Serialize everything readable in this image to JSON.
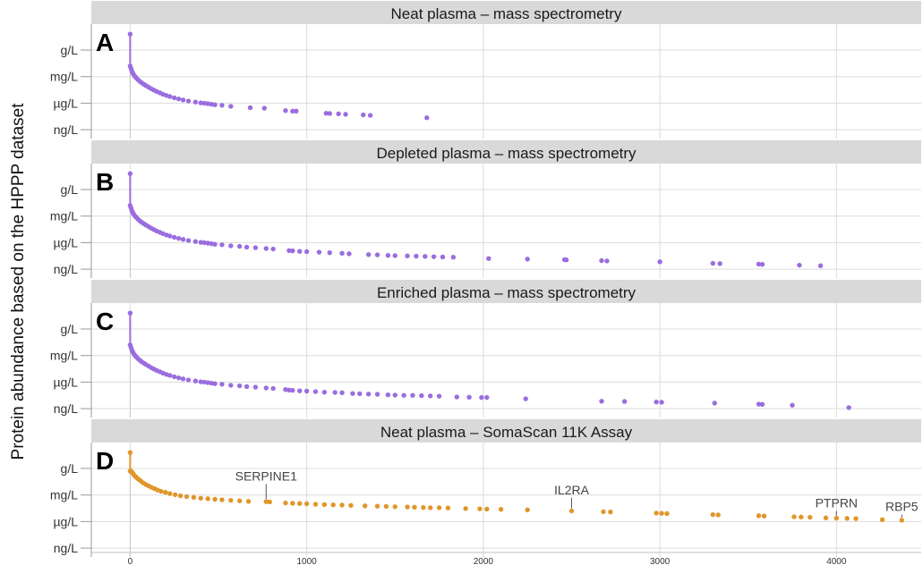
{
  "chart_data": {
    "type": "scatter",
    "ylabel": "Protein abundance based on the HPPP dataset",
    "xlim": [
      -220,
      4480
    ],
    "x_ticks": [
      0,
      1000,
      2000,
      3000,
      4000
    ],
    "y_ticks": [
      "g/L",
      "mg/L",
      "µg/L",
      "ng/L"
    ],
    "grid": true,
    "colors": {
      "purple": "#9b6ddf",
      "orange": "#e0962a",
      "strip": "#d9d9d9"
    },
    "panels": [
      {
        "letter": "A",
        "title": "Neat plasma – mass spectrometry",
        "color": "#9b6ddf",
        "points": [
          [
            0,
            -0.6
          ],
          [
            0,
            0.6
          ],
          [
            5,
            0.7
          ],
          [
            10,
            0.8
          ],
          [
            15,
            0.87
          ],
          [
            20,
            0.93
          ],
          [
            28,
            1.0
          ],
          [
            36,
            1.06
          ],
          [
            45,
            1.12
          ],
          [
            55,
            1.18
          ],
          [
            65,
            1.23
          ],
          [
            78,
            1.29
          ],
          [
            90,
            1.34
          ],
          [
            105,
            1.4
          ],
          [
            120,
            1.46
          ],
          [
            135,
            1.51
          ],
          [
            150,
            1.56
          ],
          [
            168,
            1.61
          ],
          [
            185,
            1.66
          ],
          [
            205,
            1.71
          ],
          [
            225,
            1.75
          ],
          [
            250,
            1.8
          ],
          [
            275,
            1.84
          ],
          [
            300,
            1.88
          ],
          [
            330,
            1.92
          ],
          [
            370,
            1.96
          ],
          [
            400,
            1.99
          ],
          [
            420,
            2.0
          ],
          [
            440,
            2.02
          ],
          [
            460,
            2.04
          ],
          [
            480,
            2.06
          ],
          [
            520,
            2.08
          ],
          [
            570,
            2.12
          ],
          [
            680,
            2.17
          ],
          [
            760,
            2.19
          ],
          [
            880,
            2.28
          ],
          [
            920,
            2.3
          ],
          [
            940,
            2.3
          ],
          [
            1110,
            2.38
          ],
          [
            1130,
            2.39
          ],
          [
            1180,
            2.4
          ],
          [
            1220,
            2.42
          ],
          [
            1320,
            2.44
          ],
          [
            1360,
            2.46
          ],
          [
            1680,
            2.55
          ]
        ]
      },
      {
        "letter": "B",
        "title": "Depleted plasma – mass spectrometry",
        "color": "#9b6ddf",
        "points": [
          [
            0,
            -0.6
          ],
          [
            0,
            0.6
          ],
          [
            5,
            0.7
          ],
          [
            10,
            0.8
          ],
          [
            15,
            0.87
          ],
          [
            20,
            0.93
          ],
          [
            28,
            1.0
          ],
          [
            36,
            1.06
          ],
          [
            45,
            1.12
          ],
          [
            55,
            1.18
          ],
          [
            65,
            1.23
          ],
          [
            78,
            1.29
          ],
          [
            90,
            1.34
          ],
          [
            105,
            1.4
          ],
          [
            120,
            1.46
          ],
          [
            135,
            1.51
          ],
          [
            150,
            1.56
          ],
          [
            168,
            1.61
          ],
          [
            185,
            1.66
          ],
          [
            205,
            1.71
          ],
          [
            225,
            1.75
          ],
          [
            250,
            1.8
          ],
          [
            275,
            1.84
          ],
          [
            300,
            1.88
          ],
          [
            330,
            1.92
          ],
          [
            370,
            1.96
          ],
          [
            400,
            1.99
          ],
          [
            420,
            2.0
          ],
          [
            440,
            2.02
          ],
          [
            460,
            2.04
          ],
          [
            480,
            2.06
          ],
          [
            520,
            2.08
          ],
          [
            570,
            2.12
          ],
          [
            620,
            2.14
          ],
          [
            660,
            2.17
          ],
          [
            710,
            2.19
          ],
          [
            770,
            2.22
          ],
          [
            810,
            2.24
          ],
          [
            900,
            2.3
          ],
          [
            920,
            2.31
          ],
          [
            960,
            2.33
          ],
          [
            1000,
            2.34
          ],
          [
            1070,
            2.36
          ],
          [
            1130,
            2.38
          ],
          [
            1200,
            2.4
          ],
          [
            1240,
            2.42
          ],
          [
            1350,
            2.45
          ],
          [
            1400,
            2.46
          ],
          [
            1460,
            2.48
          ],
          [
            1500,
            2.49
          ],
          [
            1570,
            2.5
          ],
          [
            1620,
            2.51
          ],
          [
            1670,
            2.52
          ],
          [
            1720,
            2.53
          ],
          [
            1770,
            2.54
          ],
          [
            1830,
            2.55
          ],
          [
            2030,
            2.6
          ],
          [
            2250,
            2.62
          ],
          [
            2460,
            2.64
          ],
          [
            2470,
            2.65
          ],
          [
            2670,
            2.68
          ],
          [
            2700,
            2.69
          ],
          [
            3000,
            2.72
          ],
          [
            3300,
            2.78
          ],
          [
            3340,
            2.79
          ],
          [
            3560,
            2.81
          ],
          [
            3580,
            2.82
          ],
          [
            3790,
            2.85
          ],
          [
            3910,
            2.87
          ]
        ]
      },
      {
        "letter": "C",
        "title": "Enriched plasma – mass spectrometry",
        "color": "#9b6ddf",
        "points": [
          [
            0,
            -0.6
          ],
          [
            0,
            0.6
          ],
          [
            5,
            0.7
          ],
          [
            10,
            0.8
          ],
          [
            15,
            0.87
          ],
          [
            20,
            0.93
          ],
          [
            28,
            1.0
          ],
          [
            36,
            1.06
          ],
          [
            45,
            1.12
          ],
          [
            55,
            1.18
          ],
          [
            65,
            1.23
          ],
          [
            78,
            1.29
          ],
          [
            90,
            1.34
          ],
          [
            105,
            1.4
          ],
          [
            120,
            1.46
          ],
          [
            135,
            1.51
          ],
          [
            150,
            1.56
          ],
          [
            168,
            1.61
          ],
          [
            185,
            1.66
          ],
          [
            205,
            1.71
          ],
          [
            225,
            1.75
          ],
          [
            250,
            1.8
          ],
          [
            275,
            1.84
          ],
          [
            300,
            1.88
          ],
          [
            330,
            1.92
          ],
          [
            370,
            1.96
          ],
          [
            400,
            1.99
          ],
          [
            420,
            2.0
          ],
          [
            440,
            2.02
          ],
          [
            460,
            2.04
          ],
          [
            480,
            2.06
          ],
          [
            520,
            2.08
          ],
          [
            570,
            2.12
          ],
          [
            620,
            2.14
          ],
          [
            660,
            2.17
          ],
          [
            710,
            2.19
          ],
          [
            770,
            2.22
          ],
          [
            810,
            2.24
          ],
          [
            880,
            2.28
          ],
          [
            900,
            2.3
          ],
          [
            920,
            2.31
          ],
          [
            960,
            2.33
          ],
          [
            1000,
            2.34
          ],
          [
            1050,
            2.36
          ],
          [
            1100,
            2.38
          ],
          [
            1160,
            2.39
          ],
          [
            1200,
            2.4
          ],
          [
            1260,
            2.43
          ],
          [
            1300,
            2.44
          ],
          [
            1350,
            2.45
          ],
          [
            1400,
            2.46
          ],
          [
            1460,
            2.48
          ],
          [
            1500,
            2.49
          ],
          [
            1550,
            2.5
          ],
          [
            1600,
            2.5
          ],
          [
            1650,
            2.51
          ],
          [
            1700,
            2.52
          ],
          [
            1750,
            2.53
          ],
          [
            1850,
            2.56
          ],
          [
            1920,
            2.57
          ],
          [
            1990,
            2.58
          ],
          [
            2020,
            2.58
          ],
          [
            2240,
            2.63
          ],
          [
            2670,
            2.72
          ],
          [
            2800,
            2.73
          ],
          [
            2980,
            2.75
          ],
          [
            3010,
            2.76
          ],
          [
            3310,
            2.79
          ],
          [
            3560,
            2.83
          ],
          [
            3580,
            2.84
          ],
          [
            3750,
            2.87
          ],
          [
            4070,
            2.96
          ]
        ]
      },
      {
        "letter": "D",
        "title": "Neat plasma – SomaScan 11K Assay",
        "color": "#e0962a",
        "points": [
          [
            0,
            -0.6
          ],
          [
            0,
            0.1
          ],
          [
            5,
            0.1
          ],
          [
            10,
            0.14
          ],
          [
            15,
            0.18
          ],
          [
            22,
            0.25
          ],
          [
            30,
            0.3
          ],
          [
            40,
            0.37
          ],
          [
            50,
            0.42
          ],
          [
            62,
            0.48
          ],
          [
            75,
            0.55
          ],
          [
            90,
            0.61
          ],
          [
            105,
            0.66
          ],
          [
            120,
            0.71
          ],
          [
            138,
            0.76
          ],
          [
            155,
            0.81
          ],
          [
            175,
            0.86
          ],
          [
            200,
            0.9
          ],
          [
            225,
            0.95
          ],
          [
            255,
            0.99
          ],
          [
            285,
            1.03
          ],
          [
            320,
            1.06
          ],
          [
            360,
            1.09
          ],
          [
            400,
            1.12
          ],
          [
            440,
            1.14
          ],
          [
            480,
            1.16
          ],
          [
            520,
            1.18
          ],
          [
            570,
            1.2
          ],
          [
            620,
            1.22
          ],
          [
            670,
            1.24
          ],
          [
            770,
            1.25
          ],
          [
            790,
            1.26
          ],
          [
            880,
            1.3
          ],
          [
            920,
            1.31
          ],
          [
            960,
            1.32
          ],
          [
            1000,
            1.33
          ],
          [
            1050,
            1.35
          ],
          [
            1100,
            1.36
          ],
          [
            1150,
            1.37
          ],
          [
            1200,
            1.38
          ],
          [
            1250,
            1.39
          ],
          [
            1330,
            1.41
          ],
          [
            1400,
            1.42
          ],
          [
            1450,
            1.43
          ],
          [
            1500,
            1.44
          ],
          [
            1570,
            1.45
          ],
          [
            1610,
            1.46
          ],
          [
            1660,
            1.47
          ],
          [
            1700,
            1.48
          ],
          [
            1750,
            1.48
          ],
          [
            1800,
            1.49
          ],
          [
            1900,
            1.51
          ],
          [
            1980,
            1.52
          ],
          [
            2020,
            1.53
          ],
          [
            2100,
            1.54
          ],
          [
            2250,
            1.56
          ],
          [
            2500,
            1.6
          ],
          [
            2680,
            1.63
          ],
          [
            2720,
            1.64
          ],
          [
            2980,
            1.68
          ],
          [
            3010,
            1.69
          ],
          [
            3040,
            1.7
          ],
          [
            3300,
            1.74
          ],
          [
            3330,
            1.75
          ],
          [
            3560,
            1.78
          ],
          [
            3590,
            1.79
          ],
          [
            3760,
            1.82
          ],
          [
            3800,
            1.83
          ],
          [
            3850,
            1.84
          ],
          [
            3940,
            1.86
          ],
          [
            4000,
            1.87
          ],
          [
            4060,
            1.88
          ],
          [
            4110,
            1.89
          ],
          [
            4260,
            1.93
          ],
          [
            4370,
            1.95
          ]
        ],
        "annotations": [
          {
            "label": "SERPINE1",
            "x": 770,
            "y": 1.25,
            "text_y": 0.45
          },
          {
            "label": "IL2RA",
            "x": 2500,
            "y": 1.6,
            "text_y": 0.97
          },
          {
            "label": "PTPRN",
            "x": 4000,
            "y": 1.87,
            "text_y": 1.47
          },
          {
            "label": "RBP5",
            "x": 4370,
            "y": 1.95,
            "text_y": 1.6
          }
        ]
      }
    ]
  }
}
